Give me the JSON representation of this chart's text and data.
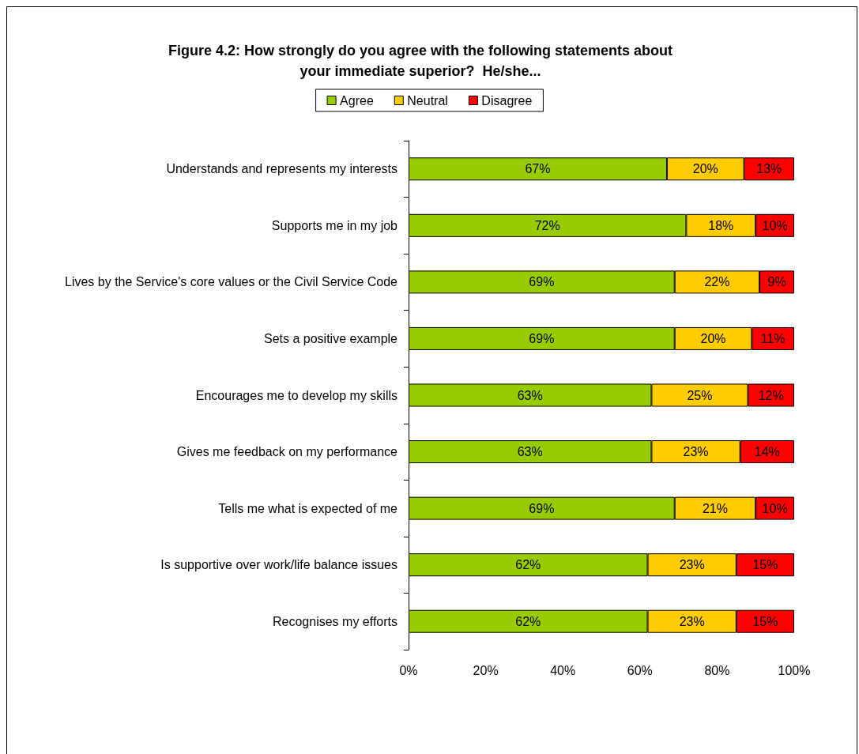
{
  "chart_data": {
    "type": "bar",
    "orientation": "horizontal",
    "stacked": true,
    "title": "Figure 4.2: How strongly do you agree with the following statements about\nyour immediate superior?  He/she...",
    "categories": [
      "Understands and represents my interests",
      "Supports me in my job",
      "Lives by the Service's core values or the Civil Service Code",
      "Sets a positive example",
      "Encourages me to develop my skills",
      "Gives me feedback on my performance",
      "Tells me what is expected of me",
      "Is supportive over work/life balance issues",
      "Recognises my efforts"
    ],
    "series": [
      {
        "name": "Agree",
        "color": "#99cc00",
        "values": [
          67,
          72,
          69,
          69,
          63,
          63,
          69,
          62,
          62
        ],
        "value_labels": [
          "67%",
          "72%",
          "69%",
          "69%",
          "63%",
          "63%",
          "69%",
          "62%",
          "62%"
        ]
      },
      {
        "name": "Neutral",
        "color": "#ffcc00",
        "values": [
          20,
          18,
          22,
          20,
          25,
          23,
          21,
          23,
          23
        ],
        "value_labels": [
          "20%",
          "18%",
          "22%",
          "20%",
          "25%",
          "23%",
          "21%",
          "23%",
          "23%"
        ]
      },
      {
        "name": "Disagree",
        "color": "#ff0000",
        "values": [
          13,
          10,
          9,
          11,
          12,
          14,
          10,
          15,
          15
        ],
        "value_labels": [
          "13%",
          "10%",
          "9%",
          "11%",
          "12%",
          "14%",
          "10%",
          "15%",
          "15%"
        ]
      }
    ],
    "xlim": [
      0,
      100
    ],
    "xticks": [
      {
        "value": 0,
        "label": "0%"
      },
      {
        "value": 20,
        "label": "20%"
      },
      {
        "value": 40,
        "label": "40%"
      },
      {
        "value": 60,
        "label": "60%"
      },
      {
        "value": 80,
        "label": "80%"
      },
      {
        "value": 100,
        "label": "100%"
      }
    ],
    "legend": "top",
    "grid": false
  }
}
